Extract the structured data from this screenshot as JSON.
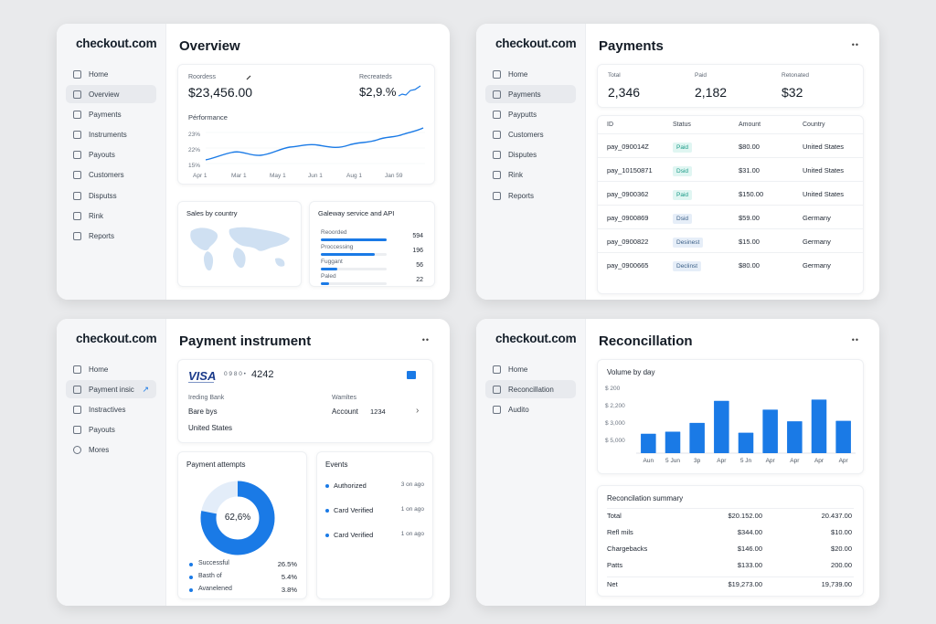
{
  "brand": {
    "name": "checkout.com",
    "accent": "#1a7ae6"
  },
  "overview": {
    "nav": [
      {
        "label": "Home",
        "icon": "home-icon"
      },
      {
        "label": "Overview",
        "icon": "overview-icon"
      },
      {
        "label": "Payments",
        "icon": "payments-icon"
      },
      {
        "label": "Instruments",
        "icon": "instruments-icon"
      },
      {
        "label": "Payouts",
        "icon": "payouts-icon"
      },
      {
        "label": "Customers",
        "icon": "customers-icon"
      },
      {
        "label": "Disputss",
        "icon": "disputes-icon"
      },
      {
        "label": "Rink",
        "icon": "risk-icon"
      },
      {
        "label": "Reports",
        "icon": "reports-icon"
      }
    ],
    "title": "Overview",
    "metric1_label": "Roordess",
    "metric1_value": "$23,456.00",
    "metric2_label": "Recreateds",
    "metric2_value": "$2,9.%",
    "performance_label": "Pérformance",
    "yticks": [
      "23%",
      "22%",
      "15%"
    ],
    "xticks": [
      "Apr 1",
      "Mar 1",
      "May 1",
      "Jun 1",
      "Aug 1",
      "Jan 59"
    ],
    "sales_title": "Sales by country",
    "gateway_title": "Galeway service and API",
    "gateway_rows": [
      {
        "label": "Reoorded",
        "value": "594",
        "fill": 1.0
      },
      {
        "label": "Proccessing",
        "value": "196",
        "fill": 0.82
      },
      {
        "label": "Fuggant",
        "value": "56",
        "fill": 0.25
      },
      {
        "label": "Paled",
        "value": "22",
        "fill": 0.12
      }
    ]
  },
  "payments": {
    "nav": [
      {
        "label": "Home",
        "icon": "home-icon"
      },
      {
        "label": "Payments",
        "icon": "payments-icon"
      },
      {
        "label": "Payputts",
        "icon": "payouts-icon"
      },
      {
        "label": "Customers",
        "icon": "customers-icon"
      },
      {
        "label": "Disputes",
        "icon": "disputes-icon"
      },
      {
        "label": "Rink",
        "icon": "risk-icon"
      },
      {
        "label": "Reports",
        "icon": "reports-icon"
      }
    ],
    "title": "Payments",
    "dots": "••",
    "stats": [
      {
        "label": "Total",
        "value": "2,346"
      },
      {
        "label": "Paid",
        "value": "2,182"
      },
      {
        "label": "Retonated",
        "value": "$32"
      }
    ],
    "headers": [
      "ID",
      "Status",
      "Amount",
      "Country"
    ],
    "rows": [
      {
        "id": "pay_090014Z",
        "status": "Paid",
        "badge": "g",
        "amount": "$80.00",
        "country": "United States"
      },
      {
        "id": "pay_10150871",
        "status": "Dsid",
        "badge": "g",
        "amount": "$31.00",
        "country": "United States"
      },
      {
        "id": "pay_0900362",
        "status": "Paid",
        "badge": "g",
        "amount": "$150.00",
        "country": "United States"
      },
      {
        "id": "pay_0900869",
        "status": "Dsid",
        "badge": "b",
        "amount": "$59.00",
        "country": "Germany"
      },
      {
        "id": "pay_0900822",
        "status": "Desinest",
        "badge": "b",
        "amount": "$15.00",
        "country": "Germany"
      },
      {
        "id": "pay_0900665",
        "status": "Declinst",
        "badge": "b",
        "amount": "$80.00",
        "country": "Germany"
      }
    ]
  },
  "instrument": {
    "nav": [
      {
        "label": "Home",
        "icon": "home-icon"
      },
      {
        "label": "Payment insic",
        "icon": "payments-icon"
      },
      {
        "label": "Instractives",
        "icon": "instruments-icon"
      },
      {
        "label": "Payouts",
        "icon": "payouts-icon"
      },
      {
        "label": "Mores",
        "icon": "more-icon"
      }
    ],
    "title": "Payment instrument",
    "dots": "••",
    "card_brand": "VISA",
    "card_dots": "0 9 8 0 •",
    "card_last4": "4242",
    "bank_label": "Ireding Bank",
    "bank_name": "Bare bys",
    "bank_country": "United States",
    "wallet_label": "Wamltes",
    "account_label": "Account",
    "account_value": "1234",
    "attempts_title": "Payment attempts",
    "donut_value": "62,6%",
    "donut_fraction": 0.78,
    "legend": [
      {
        "label": "Successful",
        "value": "26.5%"
      },
      {
        "label": "Basth of",
        "value": "5.4%"
      },
      {
        "label": "Avanelened",
        "value": "3.8%"
      }
    ],
    "events_title": "Events",
    "events": [
      {
        "label": "Authorized",
        "time": "3 on ago"
      },
      {
        "label": "Card Verified",
        "time": "1 on ago"
      },
      {
        "label": "Card Verified",
        "time": "1 on ago"
      }
    ]
  },
  "reconciliation": {
    "nav": [
      {
        "label": "Home",
        "icon": "home-icon"
      },
      {
        "label": "Reconcillation",
        "icon": "reconciliation-icon"
      },
      {
        "label": "Audito",
        "icon": "audit-icon"
      }
    ],
    "title": "Reconcillation",
    "dots": "••",
    "volume_title": "Volume by day",
    "chart_data": {
      "type": "bar",
      "title": "Volume by day",
      "categories": [
        "Aun",
        "5 Jun",
        "3p",
        "Apr",
        "5 Jn",
        "Apr",
        "Apr",
        "Apr",
        "Apr"
      ],
      "values": [
        2950,
        3050,
        3480,
        4560,
        3000,
        4130,
        3560,
        4620,
        3580
      ],
      "ytick_labels": [
        "$ 200",
        "$ 2,200",
        "$ 3,000",
        "$ 5,000"
      ],
      "ylim": [
        2000,
        5400
      ],
      "color": "#1a7ae6"
    },
    "summary_title": "Reconcilation summary",
    "summary": [
      {
        "label": "Total",
        "a": "$20.152.00",
        "b": "20.437.00"
      },
      {
        "label": "Refl mils",
        "a": "$344.00",
        "b": "$10.00"
      },
      {
        "label": "Chargebacks",
        "a": "$146.00",
        "b": "$20.00"
      },
      {
        "label": "Patts",
        "a": "$133.00",
        "b": "200.00"
      },
      {
        "label": "Net",
        "a": "$19,273.00",
        "b": "19,739.00"
      }
    ]
  }
}
